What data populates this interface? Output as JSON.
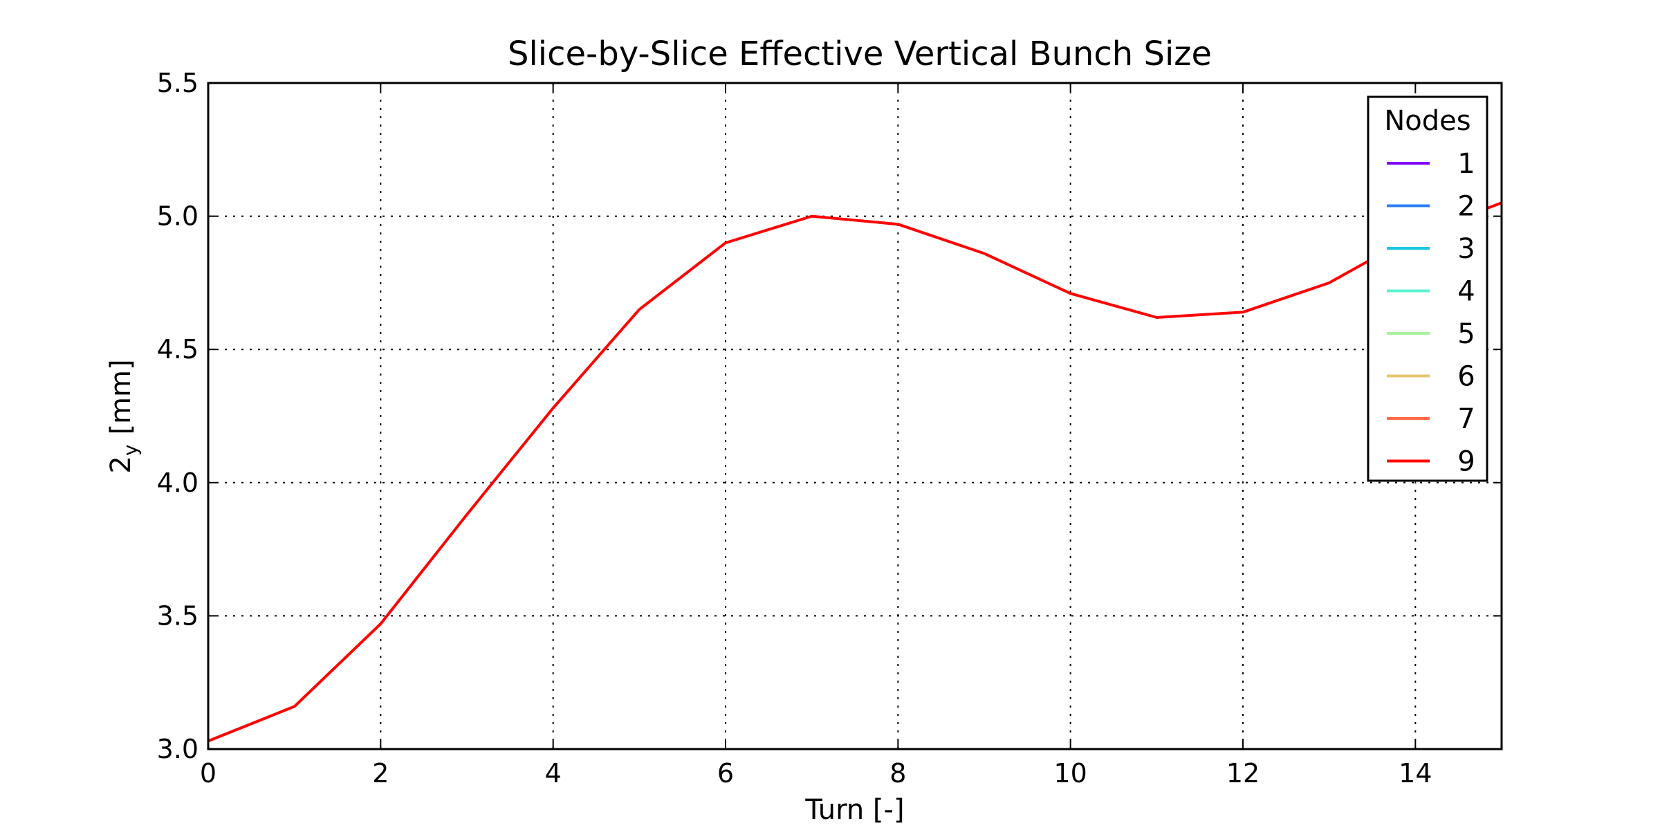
{
  "chart_data": {
    "type": "line",
    "title": "Slice-by-Slice Effective Vertical Bunch Size",
    "xlabel": "Turn [-]",
    "ylabel_main": "2",
    "ylabel_sub": "y",
    "ylabel_unit": "[mm]",
    "xlim": [
      0,
      15
    ],
    "ylim": [
      3.0,
      5.5
    ],
    "x_ticks": [
      0,
      2,
      4,
      6,
      8,
      10,
      12,
      14
    ],
    "y_ticks": [
      3.0,
      3.5,
      4.0,
      4.5,
      5.0,
      5.5
    ],
    "x_tick_labels": [
      "0",
      "2",
      "4",
      "6",
      "8",
      "10",
      "12",
      "14"
    ],
    "y_tick_labels": [
      "3.0",
      "3.5",
      "4.0",
      "4.5",
      "5.0",
      "5.5"
    ],
    "grid": true,
    "legend_placement": "top-right",
    "legend_title": "Nodes",
    "series": [
      {
        "name": "1",
        "color": "#8000ff",
        "x": [],
        "y": []
      },
      {
        "name": "2",
        "color": "#2c7ef7",
        "x": [],
        "y": []
      },
      {
        "name": "3",
        "color": "#1ac7e2",
        "x": [],
        "y": []
      },
      {
        "name": "4",
        "color": "#5cf0cf",
        "x": [],
        "y": []
      },
      {
        "name": "5",
        "color": "#a8f09e",
        "x": [],
        "y": []
      },
      {
        "name": "6",
        "color": "#e6c66e",
        "x": [],
        "y": []
      },
      {
        "name": "7",
        "color": "#ff6b45",
        "x": [],
        "y": []
      },
      {
        "name": "9",
        "color": "#ff0000",
        "x": [
          0,
          1,
          2,
          3,
          4,
          5,
          6,
          7,
          8,
          9,
          10,
          11,
          12,
          13,
          14,
          15
        ],
        "y": [
          3.03,
          3.16,
          3.47,
          3.88,
          4.28,
          4.65,
          4.9,
          5.0,
          4.97,
          4.86,
          4.71,
          4.62,
          4.64,
          4.75,
          4.93,
          5.05
        ]
      }
    ]
  }
}
